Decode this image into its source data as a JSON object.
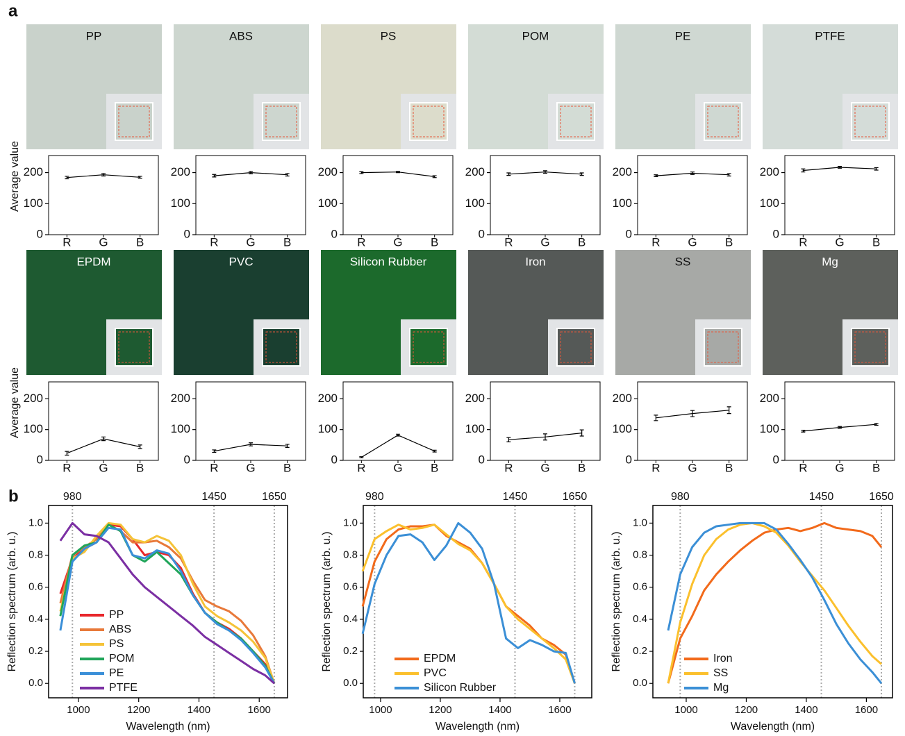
{
  "panel_labels": [
    "a",
    "b"
  ],
  "photos": [
    {
      "label": "PP",
      "color": "#c9d2cb"
    },
    {
      "label": "ABS",
      "color": "#cdd6cf"
    },
    {
      "label": "PS",
      "color": "#dcdccb"
    },
    {
      "label": "POM",
      "color": "#d3dcd5"
    },
    {
      "label": "PE",
      "color": "#cfd8d2"
    },
    {
      "label": "PTFE",
      "color": "#d4dcd8"
    },
    {
      "label": "EPDM",
      "color": "#1e5a31"
    },
    {
      "label": "PVC",
      "color": "#1a3f30"
    },
    {
      "label": "Silicon Rubber",
      "color": "#1c6a2c"
    },
    {
      "label": "Iron",
      "color": "#555957"
    },
    {
      "label": "SS",
      "color": "#a7a9a6"
    },
    {
      "label": "Mg",
      "color": "#5d605c"
    }
  ],
  "chart_data": [
    {
      "type": "line",
      "ylabel": "Average value",
      "categories": [
        "R",
        "G",
        "B"
      ],
      "values": [
        184,
        193,
        185
      ],
      "errors": [
        4,
        4,
        3
      ],
      "color": "#000000",
      "ylim": [
        0,
        255
      ],
      "yticks": [
        0,
        100,
        200
      ]
    },
    {
      "type": "line",
      "categories": [
        "R",
        "G",
        "B"
      ],
      "values": [
        190,
        200,
        193
      ],
      "errors": [
        4,
        4,
        4
      ],
      "color": "#000000",
      "ylim": [
        0,
        255
      ],
      "yticks": [
        0,
        100,
        200
      ]
    },
    {
      "type": "line",
      "categories": [
        "R",
        "G",
        "B"
      ],
      "values": [
        200,
        202,
        187
      ],
      "errors": [
        3,
        2,
        3
      ],
      "color": "#000000",
      "ylim": [
        0,
        255
      ],
      "yticks": [
        0,
        100,
        200
      ]
    },
    {
      "type": "line",
      "categories": [
        "R",
        "G",
        "B"
      ],
      "values": [
        195,
        202,
        195
      ],
      "errors": [
        4,
        4,
        4
      ],
      "color": "#000000",
      "ylim": [
        0,
        255
      ],
      "yticks": [
        0,
        100,
        200
      ]
    },
    {
      "type": "line",
      "categories": [
        "R",
        "G",
        "B"
      ],
      "values": [
        190,
        198,
        193
      ],
      "errors": [
        3,
        4,
        4
      ],
      "color": "#000000",
      "ylim": [
        0,
        255
      ],
      "yticks": [
        0,
        100,
        200
      ]
    },
    {
      "type": "line",
      "categories": [
        "R",
        "G",
        "B"
      ],
      "values": [
        207,
        217,
        212
      ],
      "errors": [
        5,
        3,
        4
      ],
      "color": "#000000",
      "ylim": [
        0,
        255
      ],
      "yticks": [
        0,
        100,
        200
      ]
    },
    {
      "type": "line",
      "ylabel": "Average value",
      "categories": [
        "R",
        "G",
        "B"
      ],
      "values": [
        23,
        70,
        44
      ],
      "errors": [
        6,
        6,
        6
      ],
      "color": "#000000",
      "ylim": [
        0,
        255
      ],
      "yticks": [
        0,
        100,
        200
      ]
    },
    {
      "type": "line",
      "categories": [
        "R",
        "G",
        "B"
      ],
      "values": [
        30,
        52,
        47
      ],
      "errors": [
        4,
        5,
        5
      ],
      "color": "#000000",
      "ylim": [
        0,
        255
      ],
      "yticks": [
        0,
        100,
        200
      ]
    },
    {
      "type": "line",
      "categories": [
        "R",
        "G",
        "B"
      ],
      "values": [
        10,
        82,
        30
      ],
      "errors": [
        2,
        3,
        3
      ],
      "color": "#000000",
      "ylim": [
        0,
        255
      ],
      "yticks": [
        0,
        100,
        200
      ]
    },
    {
      "type": "line",
      "categories": [
        "R",
        "G",
        "B"
      ],
      "values": [
        67,
        76,
        89
      ],
      "errors": [
        7,
        10,
        10
      ],
      "color": "#000000",
      "ylim": [
        0,
        255
      ],
      "yticks": [
        0,
        100,
        200
      ]
    },
    {
      "type": "line",
      "categories": [
        "R",
        "G",
        "B"
      ],
      "values": [
        138,
        152,
        163
      ],
      "errors": [
        9,
        10,
        11
      ],
      "color": "#000000",
      "ylim": [
        0,
        255
      ],
      "yticks": [
        0,
        100,
        200
      ]
    },
    {
      "type": "line",
      "categories": [
        "R",
        "G",
        "B"
      ],
      "values": [
        95,
        107,
        117
      ],
      "errors": [
        3,
        3,
        3
      ],
      "color": "#000000",
      "ylim": [
        0,
        255
      ],
      "yticks": [
        0,
        100,
        200
      ]
    },
    {
      "type": "line",
      "xlabel": "Wavelength (nm)",
      "ylabel": "Reflection spectrum (arb. u.)",
      "x": [
        940,
        980,
        1020,
        1060,
        1100,
        1140,
        1180,
        1220,
        1260,
        1300,
        1340,
        1380,
        1420,
        1460,
        1500,
        1540,
        1580,
        1620,
        1650
      ],
      "xlim": [
        901,
        1694
      ],
      "ylim": [
        -0.09,
        1.11
      ],
      "xticks": [
        1000,
        1200,
        1400,
        1600
      ],
      "yticks": [
        {
          "value": 0,
          "label": "0.0"
        },
        {
          "value": 0.2,
          "label": "0.2"
        },
        {
          "value": 0.4,
          "label": "0.4"
        },
        {
          "value": 0.6,
          "label": "0.6"
        },
        {
          "value": 0.8,
          "label": "0.8"
        },
        {
          "value": 1,
          "label": "1.0"
        }
      ],
      "top_ticks": [
        980,
        1450,
        1650
      ],
      "legend": "lower left",
      "series": [
        {
          "name": "PP",
          "color": "#e8262b",
          "values": [
            0.56,
            0.78,
            0.84,
            0.88,
            0.99,
            0.98,
            0.9,
            0.8,
            0.82,
            0.8,
            0.72,
            0.56,
            0.44,
            0.38,
            0.34,
            0.28,
            0.2,
            0.12,
            0.0
          ]
        },
        {
          "name": "ABS",
          "color": "#e8793a",
          "values": [
            0.5,
            0.8,
            0.85,
            0.9,
            0.99,
            0.95,
            0.88,
            0.88,
            0.89,
            0.85,
            0.78,
            0.64,
            0.52,
            0.48,
            0.45,
            0.39,
            0.3,
            0.17,
            0.0
          ]
        },
        {
          "name": "PS",
          "color": "#f5c338",
          "values": [
            0.45,
            0.78,
            0.82,
            0.92,
            1.0,
            0.99,
            0.9,
            0.88,
            0.92,
            0.89,
            0.8,
            0.62,
            0.48,
            0.42,
            0.38,
            0.33,
            0.26,
            0.16,
            0.0
          ]
        },
        {
          "name": "POM",
          "color": "#20a55a",
          "values": [
            0.42,
            0.8,
            0.86,
            0.88,
            0.99,
            0.95,
            0.8,
            0.76,
            0.82,
            0.75,
            0.68,
            0.55,
            0.44,
            0.38,
            0.33,
            0.28,
            0.2,
            0.11,
            0.0
          ]
        },
        {
          "name": "PE",
          "color": "#3a8fd8",
          "values": [
            0.33,
            0.76,
            0.84,
            0.88,
            0.97,
            0.96,
            0.8,
            0.78,
            0.83,
            0.81,
            0.7,
            0.55,
            0.44,
            0.37,
            0.33,
            0.27,
            0.19,
            0.1,
            0.0
          ]
        },
        {
          "name": "PTFE",
          "color": "#7b2fa3",
          "values": [
            0.89,
            1.0,
            0.93,
            0.92,
            0.88,
            0.78,
            0.68,
            0.6,
            0.54,
            0.48,
            0.42,
            0.36,
            0.29,
            0.24,
            0.19,
            0.14,
            0.09,
            0.05,
            0.0
          ]
        }
      ]
    },
    {
      "type": "line",
      "xlabel": "Wavelength (nm)",
      "ylabel": "Reflection spectrum (arb. u.)",
      "x": [
        940,
        980,
        1020,
        1060,
        1100,
        1140,
        1180,
        1220,
        1260,
        1300,
        1340,
        1380,
        1420,
        1460,
        1500,
        1540,
        1580,
        1620,
        1650
      ],
      "xlim": [
        942,
        1707
      ],
      "ylim": [
        -0.09,
        1.11
      ],
      "xticks": [
        1000,
        1200,
        1400,
        1600
      ],
      "yticks": [
        {
          "value": 0,
          "label": "0.0"
        },
        {
          "value": 0.2,
          "label": "0.2"
        },
        {
          "value": 0.4,
          "label": "0.4"
        },
        {
          "value": 0.6,
          "label": "0.6"
        },
        {
          "value": 0.8,
          "label": "0.8"
        },
        {
          "value": 1,
          "label": "1.0"
        }
      ],
      "top_ticks": [
        980,
        1450,
        1650
      ],
      "legend": "lower left",
      "series": [
        {
          "name": "EPDM",
          "color": "#f26a1b",
          "values": [
            0.48,
            0.76,
            0.9,
            0.96,
            0.98,
            0.98,
            0.99,
            0.92,
            0.88,
            0.84,
            0.75,
            0.62,
            0.48,
            0.42,
            0.36,
            0.28,
            0.24,
            0.18,
            0.0
          ]
        },
        {
          "name": "PVC",
          "color": "#fbc02d",
          "values": [
            0.7,
            0.9,
            0.95,
            0.99,
            0.96,
            0.97,
            0.99,
            0.93,
            0.87,
            0.83,
            0.75,
            0.62,
            0.48,
            0.4,
            0.34,
            0.28,
            0.22,
            0.15,
            0.0
          ]
        },
        {
          "name": "Silicon Rubber",
          "color": "#3b8fd6",
          "values": [
            0.31,
            0.62,
            0.8,
            0.92,
            0.93,
            0.88,
            0.77,
            0.86,
            1.0,
            0.94,
            0.84,
            0.62,
            0.28,
            0.22,
            0.27,
            0.24,
            0.2,
            0.19,
            0.0
          ]
        }
      ]
    },
    {
      "type": "line",
      "xlabel": "Wavelength (nm)",
      "ylabel": "Reflection spectrum (arb. u.)",
      "x": [
        940,
        980,
        1020,
        1060,
        1100,
        1140,
        1180,
        1220,
        1260,
        1300,
        1340,
        1380,
        1420,
        1460,
        1500,
        1540,
        1580,
        1620,
        1650
      ],
      "xlim": [
        889,
        1687
      ],
      "ylim": [
        -0.09,
        1.11
      ],
      "xticks": [
        1000,
        1200,
        1400,
        1600
      ],
      "yticks": [
        {
          "value": 0,
          "label": "0.0"
        },
        {
          "value": 0.2,
          "label": "0.2"
        },
        {
          "value": 0.4,
          "label": "0.4"
        },
        {
          "value": 0.6,
          "label": "0.6"
        },
        {
          "value": 0.8,
          "label": "0.8"
        },
        {
          "value": 1,
          "label": "1.0"
        }
      ],
      "top_ticks": [
        980,
        1450,
        1650
      ],
      "legend": "lower left",
      "series": [
        {
          "name": "Iron",
          "color": "#f26a1b",
          "values": [
            0.0,
            0.28,
            0.42,
            0.58,
            0.68,
            0.76,
            0.83,
            0.89,
            0.94,
            0.96,
            0.97,
            0.95,
            0.97,
            1.0,
            0.97,
            0.96,
            0.95,
            0.92,
            0.85
          ]
        },
        {
          "name": "SS",
          "color": "#fbc02d",
          "values": [
            0.0,
            0.38,
            0.62,
            0.8,
            0.9,
            0.96,
            0.99,
            1.0,
            0.98,
            0.94,
            0.86,
            0.76,
            0.67,
            0.58,
            0.47,
            0.36,
            0.26,
            0.17,
            0.12
          ]
        },
        {
          "name": "Mg",
          "color": "#3b8fd6",
          "values": [
            0.33,
            0.68,
            0.85,
            0.94,
            0.98,
            0.99,
            1.0,
            1.0,
            1.0,
            0.96,
            0.87,
            0.77,
            0.66,
            0.52,
            0.37,
            0.25,
            0.15,
            0.07,
            0.0
          ]
        }
      ]
    }
  ]
}
